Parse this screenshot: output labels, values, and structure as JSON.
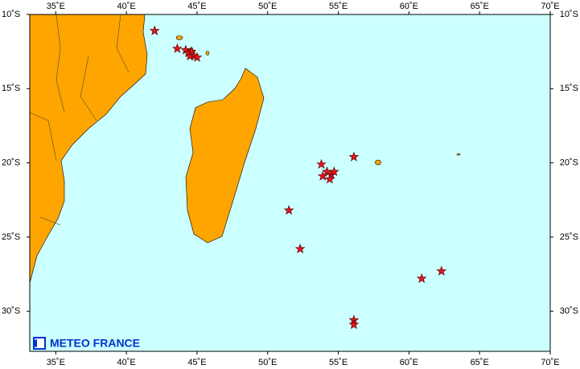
{
  "map": {
    "xlim": [
      33.16,
      70
    ],
    "ylim": [
      -10,
      -32.7
    ],
    "xticks": [
      {
        "value": 35,
        "label": "35˚E"
      },
      {
        "value": 40,
        "label": "40˚E"
      },
      {
        "value": 45,
        "label": "45˚E"
      },
      {
        "value": 50,
        "label": "50˚E"
      },
      {
        "value": 55,
        "label": "55˚E"
      },
      {
        "value": 60,
        "label": "60˚E"
      },
      {
        "value": 65,
        "label": "65˚E"
      },
      {
        "value": 70,
        "label": "70˚E"
      }
    ],
    "yticks": [
      {
        "value": -10,
        "label": "10˚S"
      },
      {
        "value": -15,
        "label": "15˚S"
      },
      {
        "value": -20,
        "label": "20˚S"
      },
      {
        "value": -25,
        "label": "25˚S"
      },
      {
        "value": -30,
        "label": "30˚S"
      }
    ],
    "marker_color": "#e8141c",
    "lon": [
      42.0,
      43.6,
      44.2,
      44.4,
      44.6,
      44.5,
      44.8,
      45.0,
      56.1,
      53.8,
      54.2,
      54.5,
      53.9,
      54.7,
      54.4,
      51.5,
      52.3,
      60.9,
      62.3,
      56.1,
      56.1
    ],
    "lat": [
      -11.1,
      -12.3,
      -12.4,
      -12.6,
      -12.5,
      -12.8,
      -12.8,
      -12.9,
      -19.6,
      -20.1,
      -20.6,
      -20.8,
      -20.9,
      -20.6,
      -21.1,
      -23.2,
      -25.8,
      -27.8,
      -27.3,
      -30.6,
      -30.9
    ],
    "logo_text": "METEO FRANCE"
  }
}
